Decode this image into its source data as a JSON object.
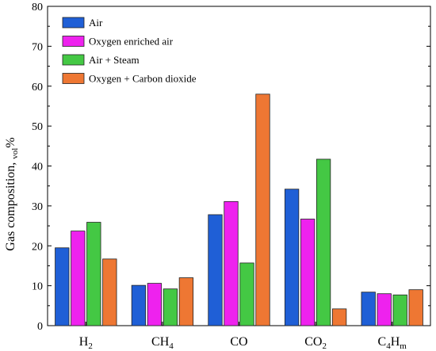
{
  "chart_data": {
    "type": "bar",
    "categories": [
      {
        "base": "H",
        "sub": "2",
        "rest": "",
        "sub2": ""
      },
      {
        "base": "CH",
        "sub": "4",
        "rest": "",
        "sub2": ""
      },
      {
        "base": "CO",
        "sub": "",
        "rest": "",
        "sub2": ""
      },
      {
        "base": "CO",
        "sub": "2",
        "rest": "",
        "sub2": ""
      },
      {
        "base": "C",
        "sub": "4",
        "rest": "H",
        "sub2": "m"
      }
    ],
    "series": [
      {
        "name": "Air",
        "color": "#1f5fd6",
        "values": [
          19.5,
          10.1,
          27.8,
          34.2,
          8.4
        ]
      },
      {
        "name": "Oxygen enriched air",
        "color": "#ee22ee",
        "values": [
          23.7,
          10.6,
          31.1,
          26.7,
          8.0
        ]
      },
      {
        "name": "Air + Steam",
        "color": "#44c844",
        "values": [
          25.9,
          9.2,
          15.7,
          41.7,
          7.7
        ]
      },
      {
        "name": "Oxygen + Carbon dioxide",
        "color": "#ee7733",
        "values": [
          16.7,
          12.0,
          58.0,
          4.2,
          9.0
        ]
      }
    ],
    "ylabel": {
      "prefix": "Gas composition, ",
      "sub": "vol",
      "suffix": "%"
    },
    "ylim": [
      0,
      80
    ],
    "yticks": [
      0,
      10,
      20,
      30,
      40,
      50,
      60,
      70,
      80
    ],
    "grid": false,
    "legend_position": "top-left"
  }
}
